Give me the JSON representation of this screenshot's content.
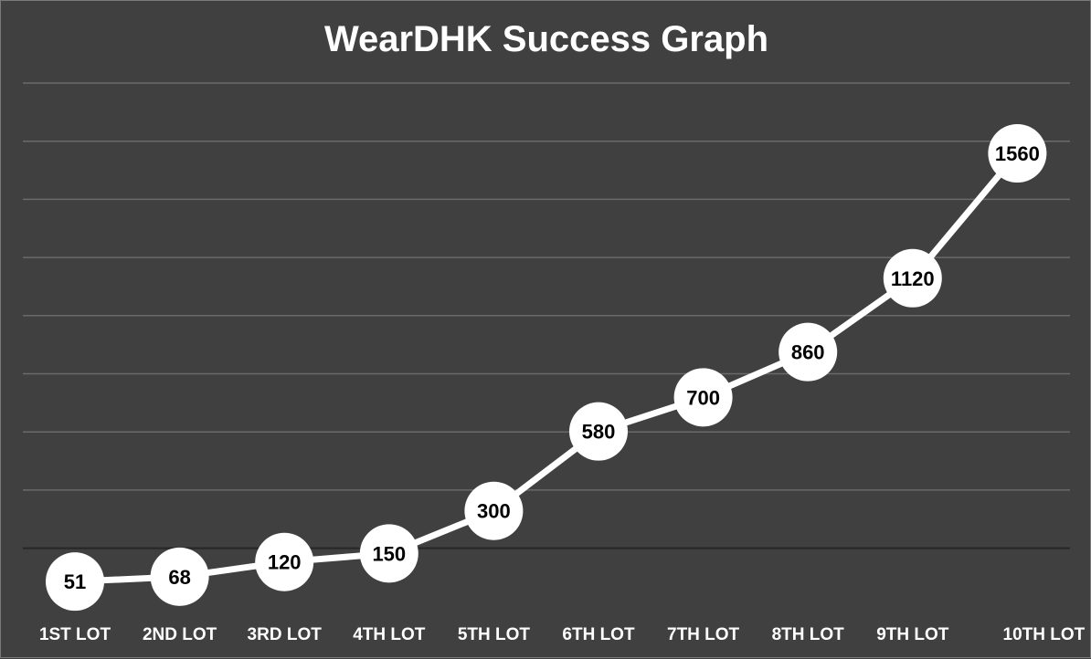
{
  "chart_data": {
    "type": "line",
    "title": "WearDHK Success Graph",
    "xlabel": "",
    "ylabel": "",
    "categories": [
      "1ST LOT",
      "2ND LOT",
      "3RD LOT",
      "4TH LOT",
      "5TH LOT",
      "6TH LOT",
      "7TH LOT",
      "8TH LOT",
      "9TH LOT",
      "10TH LOT"
    ],
    "series": [
      {
        "values": [
          51,
          68,
          120,
          150,
          300,
          580,
          700,
          860,
          1120,
          1560
        ]
      }
    ],
    "grid": true,
    "legend": "none",
    "colors": {
      "background": "#404040",
      "line": "#ffffff",
      "marker_fill": "#ffffff",
      "label_text": "#000000",
      "gridline": "#6a6a6a",
      "axis_text": "#ffffff"
    }
  }
}
